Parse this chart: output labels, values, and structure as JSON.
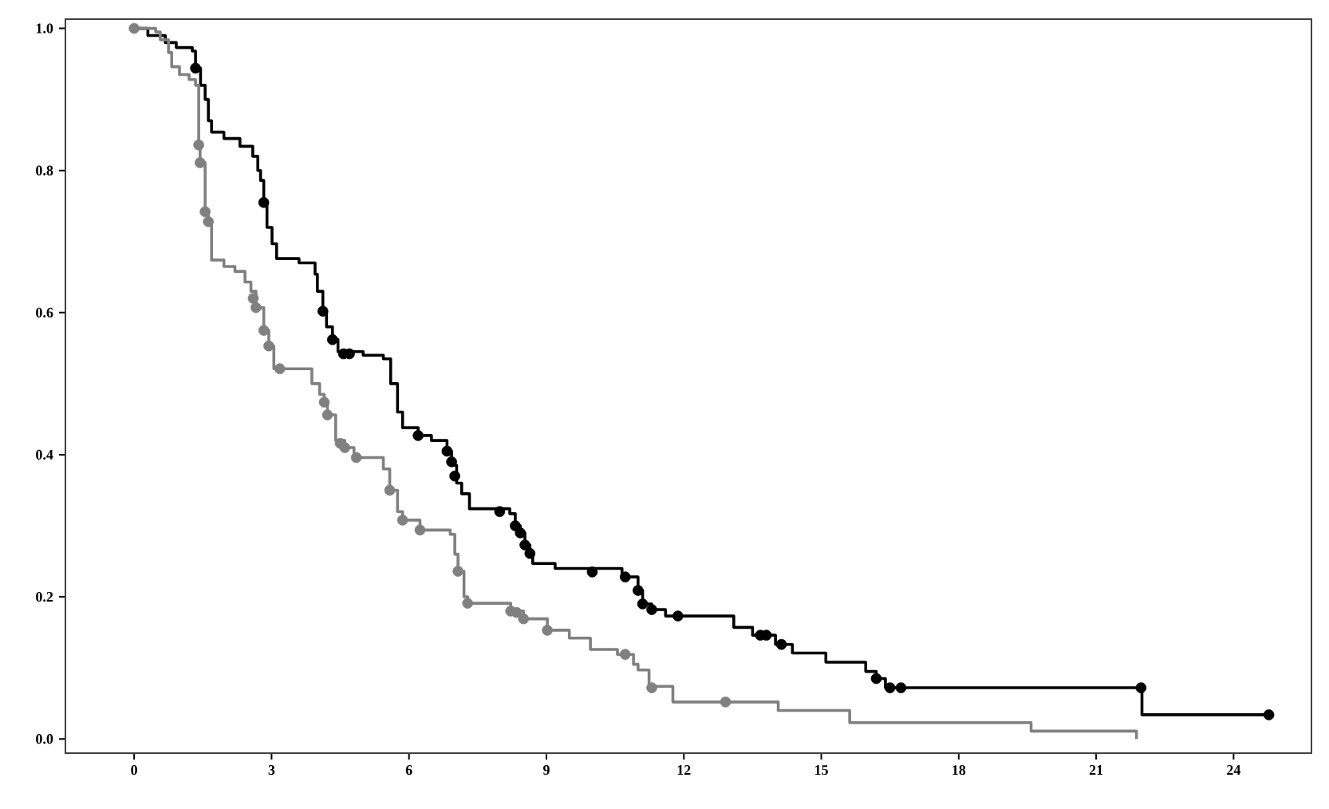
{
  "chart_data": {
    "type": "step",
    "xlim": [
      -1.5,
      25.7
    ],
    "ylim": [
      -0.02,
      1.013
    ],
    "xticks": [
      0,
      3,
      6,
      9,
      12,
      15,
      18,
      21,
      24
    ],
    "yticks": [
      {
        "value": 0,
        "label": "0.0"
      },
      {
        "value": 0.2,
        "label": "0.2"
      },
      {
        "value": 0.4,
        "label": "0.4"
      },
      {
        "value": 0.6,
        "label": "0.6"
      },
      {
        "value": 0.8,
        "label": "0.8"
      },
      {
        "value": 1.0,
        "label": "1.0"
      }
    ],
    "grid": false,
    "legend": false,
    "marker": "none",
    "line_style": "solid",
    "series": [
      {
        "color": "#000000",
        "x": [
          0,
          0.3,
          0.68,
          0.92,
          1.27,
          1.34,
          1.45,
          1.55,
          1.62,
          1.69,
          1.96,
          2.31,
          2.59,
          2.7,
          2.76,
          2.83,
          2.9,
          3.01,
          3.11,
          3.6,
          3.95,
          4.0,
          4.12,
          4.2,
          4.33,
          4.45,
          5.0,
          5.44,
          5.6,
          5.75,
          5.86,
          6.2,
          6.49,
          6.83,
          6.93,
          7.04,
          7.15,
          7.32,
          8.2,
          8.32,
          8.43,
          8.53,
          8.64,
          8.7,
          9.19,
          10.65,
          11.0,
          11.1,
          11.3,
          11.6,
          13.09,
          13.5,
          14.0,
          14.37,
          15.1,
          15.97,
          16.2,
          16.4,
          22.0,
          24.77
        ],
        "values": [
          1.0,
          0.99,
          0.98,
          0.973,
          0.968,
          0.944,
          0.92,
          0.9,
          0.87,
          0.854,
          0.845,
          0.834,
          0.82,
          0.8,
          0.786,
          0.755,
          0.72,
          0.697,
          0.676,
          0.67,
          0.654,
          0.63,
          0.602,
          0.58,
          0.562,
          0.545,
          0.54,
          0.535,
          0.5,
          0.46,
          0.438,
          0.427,
          0.42,
          0.405,
          0.385,
          0.36,
          0.345,
          0.324,
          0.317,
          0.3,
          0.29,
          0.273,
          0.261,
          0.247,
          0.24,
          0.228,
          0.209,
          0.19,
          0.182,
          0.173,
          0.157,
          0.146,
          0.133,
          0.121,
          0.108,
          0.095,
          0.085,
          0.072,
          0.034,
          0.034
        ]
      },
      {
        "color": "#808080",
        "x": [
          0,
          0.47,
          0.57,
          0.75,
          0.82,
          0.99,
          1.2,
          1.34,
          1.41,
          1.44,
          1.55,
          1.62,
          1.69,
          1.96,
          2.2,
          2.42,
          2.55,
          2.66,
          2.83,
          2.94,
          3.05,
          3.88,
          4.05,
          4.15,
          4.22,
          4.4,
          4.6,
          4.8,
          5.44,
          5.58,
          5.75,
          5.86,
          6.24,
          6.9,
          7.0,
          7.07,
          7.2,
          7.28,
          8.22,
          8.28,
          8.5,
          9.02,
          9.5,
          9.96,
          10.55,
          10.9,
          11.0,
          11.24,
          11.76,
          14.06,
          15.62,
          19.58,
          21.88
        ],
        "values": [
          1.0,
          0.995,
          0.984,
          0.966,
          0.946,
          0.935,
          0.928,
          0.92,
          0.836,
          0.811,
          0.742,
          0.728,
          0.674,
          0.665,
          0.658,
          0.643,
          0.63,
          0.607,
          0.575,
          0.553,
          0.521,
          0.5,
          0.485,
          0.474,
          0.456,
          0.42,
          0.41,
          0.396,
          0.38,
          0.35,
          0.32,
          0.308,
          0.294,
          0.288,
          0.26,
          0.236,
          0.2,
          0.191,
          0.184,
          0.18,
          0.169,
          0.153,
          0.142,
          0.126,
          0.119,
          0.105,
          0.097,
          0.074,
          0.052,
          0.04,
          0.023,
          0.011,
          0.0
        ]
      },
      {
        "type": "scatter",
        "marker": "circle",
        "color": "#808080",
        "x": [
          0,
          1.41,
          1.44,
          1.55,
          1.62,
          2.6,
          2.66,
          2.83,
          2.94,
          3.18,
          4.15,
          4.22,
          4.5,
          4.6,
          4.85,
          5.58,
          5.86,
          6.24,
          7.07,
          7.28,
          8.22,
          8.35,
          8.5,
          9.02,
          10.72,
          11.24,
          11.3,
          12.91
        ],
        "values": [
          1.0,
          0.836,
          0.811,
          0.742,
          0.728,
          0.62,
          0.607,
          0.575,
          0.553,
          0.521,
          0.474,
          0.456,
          0.416,
          0.41,
          0.396,
          0.35,
          0.308,
          0.294,
          0.236,
          0.191,
          0.18,
          0.178,
          0.169,
          0.153,
          0.119,
          null,
          0.072,
          0.052
        ]
      },
      {
        "type": "scatter",
        "marker": "circle",
        "color": "#000000",
        "x": [
          1.34,
          2.83,
          4.12,
          4.33,
          4.57,
          4.7,
          6.2,
          6.83,
          6.93,
          7.0,
          7.98,
          8.32,
          8.43,
          8.53,
          8.64,
          9.92,
          10.0,
          10.72,
          11.0,
          11.1,
          11.3,
          11.87,
          13.67,
          13.8,
          14.13,
          16.2,
          16.5,
          16.74,
          21.98,
          24.77
        ],
        "values": [
          0.944,
          0.755,
          0.602,
          0.562,
          0.542,
          0.542,
          0.427,
          0.405,
          0.39,
          0.37,
          0.32,
          0.3,
          0.29,
          0.273,
          0.261,
          null,
          0.235,
          0.228,
          0.209,
          0.19,
          0.182,
          0.173,
          0.146,
          0.146,
          0.133,
          0.085,
          0.072,
          0.072,
          0.072,
          0.034
        ]
      }
    ]
  }
}
